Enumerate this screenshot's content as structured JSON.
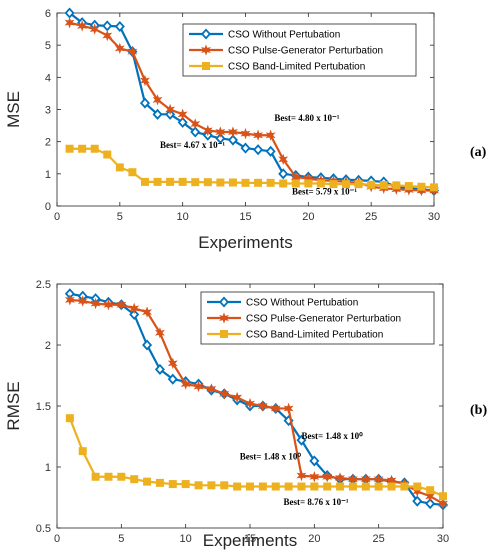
{
  "colors": {
    "without": "#0072BD",
    "pulse": "#D95319",
    "band": "#EDB120"
  },
  "chart_data": [
    {
      "type": "line",
      "panel_label": "(a)",
      "xlabel": "Experiments",
      "ylabel": "MSE",
      "xlim": [
        0,
        30
      ],
      "ylim": [
        0,
        6
      ],
      "xticks": [
        0,
        5,
        10,
        15,
        20,
        25,
        30
      ],
      "yticks": [
        0,
        1,
        2,
        3,
        4,
        5,
        6
      ],
      "legend_position": "top-right",
      "series": [
        {
          "name": "CSO Without Pertubation",
          "marker": "diamond",
          "x": [
            1,
            2,
            3,
            4,
            5,
            6,
            7,
            8,
            9,
            10,
            11,
            12,
            13,
            14,
            15,
            16,
            17,
            18,
            19,
            20,
            21,
            22,
            23,
            24,
            25,
            26,
            27,
            28,
            29,
            30
          ],
          "values": [
            6.0,
            5.7,
            5.62,
            5.6,
            5.58,
            4.8,
            3.2,
            2.85,
            2.85,
            2.6,
            2.3,
            2.2,
            2.1,
            2.05,
            1.8,
            1.75,
            1.7,
            1.0,
            0.95,
            0.9,
            0.88,
            0.85,
            0.82,
            0.8,
            0.78,
            0.75,
            0.6,
            0.55,
            0.52,
            0.48
          ]
        },
        {
          "name": "CSO Pulse-Generator Perturbation",
          "marker": "star",
          "x": [
            1,
            2,
            3,
            4,
            5,
            6,
            7,
            8,
            9,
            10,
            11,
            12,
            13,
            14,
            15,
            16,
            17,
            18,
            19,
            20,
            21,
            22,
            23,
            24,
            25,
            26,
            27,
            28,
            29,
            30
          ],
          "values": [
            5.7,
            5.6,
            5.5,
            5.3,
            4.9,
            4.8,
            3.9,
            3.3,
            3.0,
            2.85,
            2.55,
            2.35,
            2.3,
            2.3,
            2.25,
            2.2,
            2.2,
            1.45,
            0.9,
            0.85,
            0.8,
            0.78,
            0.75,
            0.72,
            0.6,
            0.55,
            0.52,
            0.5,
            0.48,
            0.48
          ]
        },
        {
          "name": "CSO Band-Limited Pertubation",
          "marker": "square",
          "x": [
            1,
            2,
            3,
            4,
            5,
            6,
            7,
            8,
            9,
            10,
            11,
            12,
            13,
            14,
            15,
            16,
            17,
            18,
            19,
            20,
            21,
            22,
            23,
            24,
            25,
            26,
            27,
            28,
            29,
            30
          ],
          "values": [
            1.78,
            1.78,
            1.78,
            1.6,
            1.2,
            1.05,
            0.75,
            0.75,
            0.75,
            0.75,
            0.74,
            0.74,
            0.73,
            0.73,
            0.72,
            0.72,
            0.72,
            0.7,
            0.7,
            0.7,
            0.7,
            0.68,
            0.68,
            0.68,
            0.66,
            0.65,
            0.64,
            0.62,
            0.6,
            0.58
          ]
        }
      ],
      "annotations": [
        {
          "text": "Best= 4.80 x 10⁻¹",
          "x": 17.3,
          "y": 2.65
        },
        {
          "text": "Best= 4.67 x 10⁻¹",
          "x": 8.2,
          "y": 1.8
        },
        {
          "text": "Best= 5.79 x 10⁻¹",
          "x": 18.7,
          "y": 0.35
        }
      ]
    },
    {
      "type": "line",
      "panel_label": "(b)",
      "xlabel": "Experiments",
      "ylabel": "RMSE",
      "xlim": [
        0,
        30
      ],
      "ylim": [
        0.5,
        2.5
      ],
      "xticks": [
        0,
        5,
        10,
        15,
        20,
        25,
        30
      ],
      "yticks": [
        0.5,
        1,
        1.5,
        2,
        2.5
      ],
      "ytick_labels": [
        "0.5",
        "1",
        "1.5",
        "2",
        "2.5"
      ],
      "legend_position": "top-right",
      "series": [
        {
          "name": "CSO Without Pertubation",
          "marker": "diamond",
          "x": [
            1,
            2,
            3,
            4,
            5,
            6,
            7,
            8,
            9,
            10,
            11,
            12,
            13,
            14,
            15,
            16,
            17,
            18,
            19,
            20,
            21,
            22,
            23,
            24,
            25,
            26,
            27,
            28,
            29,
            30
          ],
          "values": [
            2.42,
            2.4,
            2.38,
            2.35,
            2.33,
            2.25,
            2.0,
            1.8,
            1.72,
            1.7,
            1.68,
            1.63,
            1.6,
            1.55,
            1.5,
            1.5,
            1.48,
            1.38,
            1.22,
            1.05,
            0.93,
            0.9,
            0.9,
            0.9,
            0.9,
            0.88,
            0.87,
            0.72,
            0.7,
            0.69
          ]
        },
        {
          "name": "CSO Pulse-Generator Perturbation",
          "marker": "star",
          "x": [
            1,
            2,
            3,
            4,
            5,
            6,
            7,
            8,
            9,
            10,
            11,
            12,
            13,
            14,
            15,
            16,
            17,
            18,
            19,
            20,
            21,
            22,
            23,
            24,
            25,
            26,
            27,
            28,
            29,
            30
          ],
          "values": [
            2.37,
            2.36,
            2.34,
            2.33,
            2.33,
            2.3,
            2.27,
            2.1,
            1.85,
            1.68,
            1.66,
            1.64,
            1.6,
            1.57,
            1.52,
            1.5,
            1.48,
            1.48,
            0.93,
            0.92,
            0.92,
            0.91,
            0.9,
            0.9,
            0.9,
            0.89,
            0.86,
            0.8,
            0.76,
            0.7
          ]
        },
        {
          "name": "CSO Band-Limited Pertubation",
          "marker": "square",
          "x": [
            1,
            2,
            3,
            4,
            5,
            6,
            7,
            8,
            9,
            10,
            11,
            12,
            13,
            14,
            15,
            16,
            17,
            18,
            19,
            20,
            21,
            22,
            23,
            24,
            25,
            26,
            27,
            28,
            29,
            30
          ],
          "values": [
            1.4,
            1.13,
            0.92,
            0.92,
            0.92,
            0.9,
            0.88,
            0.87,
            0.86,
            0.86,
            0.85,
            0.85,
            0.85,
            0.84,
            0.84,
            0.84,
            0.84,
            0.84,
            0.84,
            0.84,
            0.84,
            0.84,
            0.84,
            0.84,
            0.84,
            0.84,
            0.84,
            0.84,
            0.81,
            0.76
          ]
        }
      ],
      "annotations": [
        {
          "text": "Best= 1.48 x 10⁰",
          "x": 19.0,
          "y": 1.23
        },
        {
          "text": "Best= 1.48 x 10⁰",
          "x": 14.2,
          "y": 1.06
        },
        {
          "text": "Best= 8.76 x 10⁻¹",
          "x": 17.6,
          "y": 0.69
        }
      ]
    }
  ]
}
